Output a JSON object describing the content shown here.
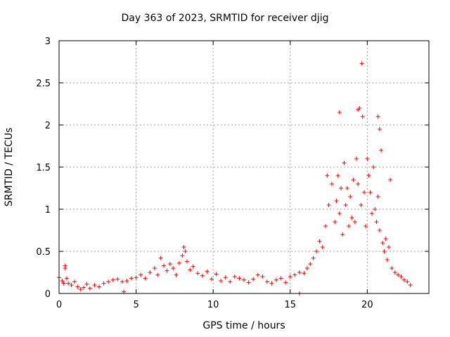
{
  "chart_data": {
    "type": "scatter",
    "title": "Day 363 of 2023, SRMTID for receiver djig",
    "xlabel": "GPS time / hours",
    "ylabel": "SRMTID / TECUs",
    "xlim": [
      0,
      24
    ],
    "ylim": [
      0,
      3
    ],
    "xticks": [
      0,
      5,
      10,
      15,
      20
    ],
    "yticks": [
      0,
      0.5,
      1,
      1.5,
      2,
      2.5,
      3
    ],
    "xtick_labels": [
      "0",
      "5",
      "10",
      "15",
      "20"
    ],
    "ytick_labels": [
      "0",
      "0.5",
      "1",
      "1.5",
      "2",
      "2.5",
      "3"
    ],
    "grid": true,
    "marker": "+",
    "color": "#ff0000",
    "series": [
      {
        "name": "SRMTID",
        "x": [
          0.0,
          0.2,
          0.3,
          0.4,
          0.5,
          0.6,
          0.8,
          1.0,
          1.2,
          1.4,
          1.6,
          1.8,
          2.0,
          2.3,
          2.6,
          2.9,
          3.2,
          3.5,
          3.8,
          4.1,
          4.4,
          4.7,
          5.0,
          5.3,
          5.6,
          5.9,
          6.2,
          6.4,
          6.6,
          6.8,
          7.0,
          7.2,
          7.4,
          7.6,
          7.8,
          8.0,
          8.1,
          8.2,
          8.3,
          8.5,
          8.7,
          9.0,
          9.3,
          9.6,
          9.9,
          10.2,
          10.5,
          10.8,
          11.1,
          11.4,
          11.7,
          12.0,
          12.3,
          12.6,
          12.9,
          13.2,
          13.5,
          13.8,
          14.1,
          14.4,
          14.7,
          15.0,
          15.3,
          15.6,
          15.9,
          16.1,
          16.3,
          16.5,
          16.7,
          16.9,
          17.1,
          17.3,
          17.5,
          17.7,
          17.9,
          18.0,
          18.1,
          18.2,
          18.3,
          18.4,
          18.5,
          18.6,
          18.7,
          18.8,
          18.9,
          19.0,
          19.1,
          19.2,
          19.3,
          19.4,
          19.5,
          19.6,
          19.65,
          19.7,
          19.8,
          19.9,
          20.0,
          20.1,
          20.2,
          20.3,
          20.4,
          20.5,
          20.6,
          20.7,
          20.8,
          20.9,
          21.0,
          21.1,
          21.2,
          21.3,
          21.4,
          21.6,
          21.8,
          22.0,
          22.2,
          22.4,
          22.6,
          22.8,
          4.2,
          15.6,
          0.4,
          18.2,
          19.4,
          20.7,
          20.8,
          17.4,
          21.5
        ],
        "y": [
          0.19,
          0.15,
          0.12,
          0.33,
          0.18,
          0.12,
          0.1,
          0.14,
          0.08,
          0.05,
          0.07,
          0.11,
          0.06,
          0.1,
          0.08,
          0.12,
          0.14,
          0.16,
          0.17,
          0.14,
          0.15,
          0.18,
          0.19,
          0.22,
          0.18,
          0.25,
          0.3,
          0.22,
          0.42,
          0.33,
          0.27,
          0.35,
          0.3,
          0.22,
          0.36,
          0.45,
          0.55,
          0.5,
          0.38,
          0.28,
          0.32,
          0.24,
          0.21,
          0.26,
          0.17,
          0.23,
          0.15,
          0.19,
          0.14,
          0.2,
          0.18,
          0.16,
          0.13,
          0.17,
          0.22,
          0.2,
          0.14,
          0.12,
          0.16,
          0.18,
          0.13,
          0.2,
          0.22,
          0.25,
          0.24,
          0.3,
          0.35,
          0.42,
          0.5,
          0.62,
          0.55,
          0.8,
          1.05,
          1.3,
          0.85,
          1.1,
          1.4,
          0.95,
          1.25,
          0.7,
          1.55,
          1.05,
          1.25,
          0.8,
          1.15,
          0.9,
          1.35,
          0.85,
          1.6,
          1.3,
          2.2,
          1.05,
          2.73,
          2.1,
          1.2,
          0.8,
          1.6,
          1.4,
          1.2,
          0.95,
          1.5,
          1.0,
          0.85,
          1.15,
          0.75,
          1.7,
          0.6,
          0.5,
          0.65,
          0.4,
          0.55,
          0.3,
          0.25,
          0.22,
          0.2,
          0.16,
          0.14,
          0.1,
          0.02,
          0.0,
          0.3,
          2.15,
          2.18,
          2.1,
          1.95,
          1.4,
          1.35
        ]
      }
    ]
  }
}
